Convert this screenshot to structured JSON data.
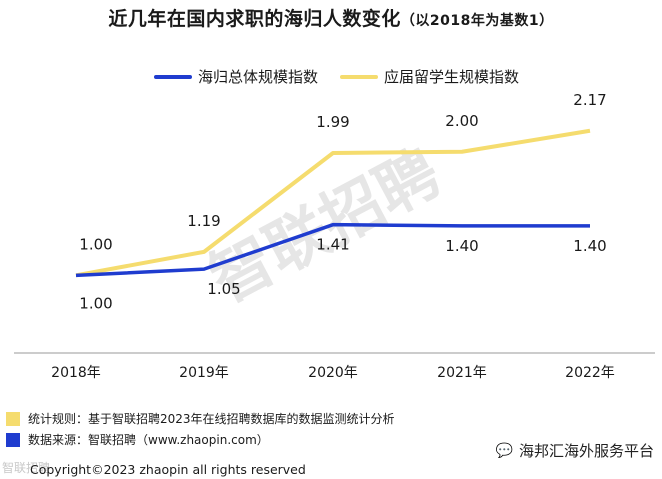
{
  "title": {
    "main": "近几年在国内求职的海归人数变化",
    "sub": "（以2018年为基数1）"
  },
  "colors": {
    "total": "#1f3ccf",
    "grad": "#f5dc6e",
    "axis": "#9a9a9a",
    "watermark": "#e6e6e6"
  },
  "watermark_text": "智联招聘",
  "chart_data": {
    "type": "line",
    "title": "近几年在国内求职的海归人数变化（以2018年为基数1）",
    "categories": [
      "2018年",
      "2019年",
      "2020年",
      "2021年",
      "2022年"
    ],
    "series": [
      {
        "name": "海归总体规模指数",
        "key": "total",
        "values": [
          1.0,
          1.05,
          1.41,
          1.4,
          1.4
        ],
        "labels": [
          "1.00",
          "1.05",
          "1.41",
          "1.40",
          "1.40"
        ]
      },
      {
        "name": "应届留学生规模指数",
        "key": "grad",
        "values": [
          1.0,
          1.19,
          1.99,
          2.0,
          2.17
        ],
        "labels": [
          "1.00",
          "1.19",
          "1.99",
          "2.00",
          "2.17"
        ]
      }
    ],
    "ylim": [
      0.25,
      2.5
    ],
    "legend": "top-center",
    "grid": false
  },
  "footnotes": {
    "rule": "统计规则：基于智联招聘2023年在线招聘数据库的数据监测统计分析",
    "source": "数据来源：智联招聘（www.zhaopin.com）"
  },
  "copyright": "Copyright©2023 zhaopin all rights reserved",
  "corner_watermark": "智联招聘",
  "account_name": "海邦汇海外服务平台"
}
